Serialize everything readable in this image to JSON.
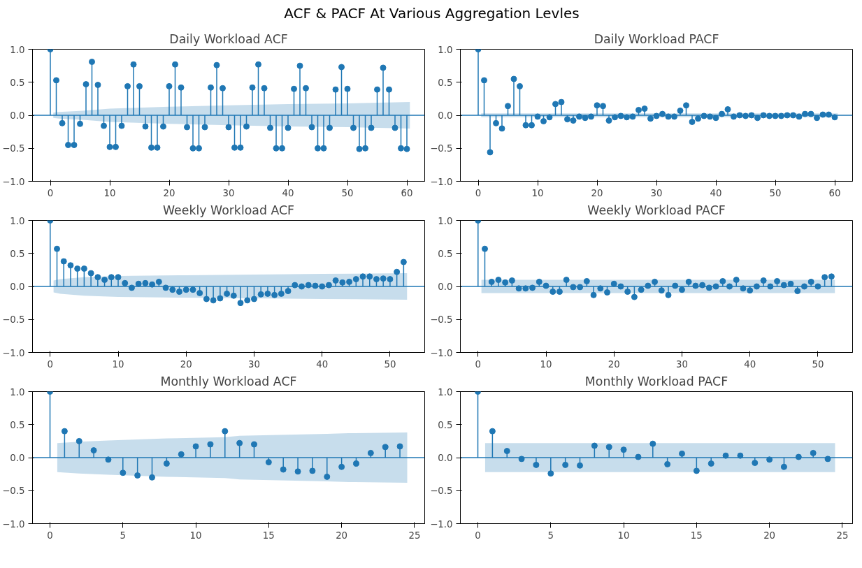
{
  "chart_data": [
    {
      "type": "other",
      "title": "ACF & PACF At Various Aggregation Levles"
    },
    {
      "type": "lollipop",
      "title": "Daily Workload ACF",
      "marker": "circle",
      "xlim": [
        -3,
        63
      ],
      "xticks": [
        0,
        10,
        20,
        30,
        40,
        50,
        60
      ],
      "ylim": [
        -1,
        1
      ],
      "yticks": [
        {
          "value": -1,
          "label": "−1.0"
        },
        {
          "value": -0.5,
          "label": "−0.5"
        },
        {
          "value": 0,
          "label": "0.0"
        },
        {
          "value": 0.5,
          "label": "0.5"
        },
        {
          "value": 1,
          "label": "1.0"
        }
      ],
      "series": [
        {
          "color": "#1f77b4",
          "x": [
            0,
            1,
            2,
            3,
            4,
            5,
            6,
            7,
            8,
            9,
            10,
            11,
            12,
            13,
            14,
            15,
            16,
            17,
            18,
            19,
            20,
            21,
            22,
            23,
            24,
            25,
            26,
            27,
            28,
            29,
            30,
            31,
            32,
            33,
            34,
            35,
            36,
            37,
            38,
            39,
            40,
            41,
            42,
            43,
            44,
            45,
            46,
            47,
            48,
            49,
            50,
            51,
            52,
            53,
            54,
            55,
            56,
            57,
            58,
            59,
            60
          ],
          "values": [
            1,
            0.53,
            -0.12,
            -0.45,
            -0.45,
            -0.13,
            0.47,
            0.81,
            0.46,
            -0.16,
            -0.48,
            -0.48,
            -0.16,
            0.44,
            0.77,
            0.44,
            -0.17,
            -0.49,
            -0.49,
            -0.17,
            0.44,
            0.77,
            0.42,
            -0.18,
            -0.5,
            -0.5,
            -0.18,
            0.42,
            0.76,
            0.41,
            -0.18,
            -0.49,
            -0.49,
            -0.17,
            0.42,
            0.77,
            0.41,
            -0.19,
            -0.5,
            -0.5,
            -0.19,
            0.4,
            0.75,
            0.41,
            -0.18,
            -0.5,
            -0.5,
            -0.19,
            0.39,
            0.73,
            0.4,
            -0.19,
            -0.51,
            -0.5,
            -0.19,
            0.39,
            0.72,
            0.39,
            -0.19,
            -0.5,
            -0.51
          ]
        },
        {
          "type": "line",
          "marker": "none",
          "color": "#1f77b4",
          "x": [
            -3,
            0.5,
            1.5,
            5.5,
            10,
            20,
            30,
            40,
            50,
            60.5,
            63
          ],
          "values": [
            0,
            0,
            0,
            0,
            0,
            0,
            0,
            0,
            0,
            0,
            0
          ],
          "upper": [
            null,
            0.04,
            0.05,
            0.07,
            0.1,
            0.13,
            0.15,
            0.17,
            0.18,
            0.2,
            null
          ],
          "lower": [
            null,
            -0.04,
            -0.05,
            -0.07,
            -0.1,
            -0.13,
            -0.15,
            -0.17,
            -0.18,
            -0.2,
            null
          ]
        }
      ]
    },
    {
      "type": "lollipop",
      "title": "Daily Workload PACF",
      "marker": "circle",
      "xlim": [
        -3,
        63
      ],
      "xticks": [
        0,
        10,
        20,
        30,
        40,
        50,
        60
      ],
      "ylim": [
        -1,
        1
      ],
      "yticks": [
        {
          "value": -1,
          "label": "−1.0"
        },
        {
          "value": -0.5,
          "label": "−0.5"
        },
        {
          "value": 0,
          "label": "0.0"
        },
        {
          "value": 0.5,
          "label": "0.5"
        },
        {
          "value": 1,
          "label": "1.0"
        }
      ],
      "series": [
        {
          "color": "#1f77b4",
          "x": [
            0,
            1,
            2,
            3,
            4,
            5,
            6,
            7,
            8,
            9,
            10,
            11,
            12,
            13,
            14,
            15,
            16,
            17,
            18,
            19,
            20,
            21,
            22,
            23,
            24,
            25,
            26,
            27,
            28,
            29,
            30,
            31,
            32,
            33,
            34,
            35,
            36,
            37,
            38,
            39,
            40,
            41,
            42,
            43,
            44,
            45,
            46,
            47,
            48,
            49,
            50,
            51,
            52,
            53,
            54,
            55,
            56,
            57,
            58,
            59,
            60
          ],
          "values": [
            1,
            0.53,
            -0.56,
            -0.12,
            -0.2,
            0.14,
            0.55,
            0.44,
            -0.15,
            -0.15,
            -0.02,
            -0.09,
            -0.03,
            0.17,
            0.2,
            -0.06,
            -0.08,
            -0.02,
            -0.04,
            -0.02,
            0.15,
            0.14,
            -0.08,
            -0.03,
            -0.01,
            -0.03,
            -0.02,
            0.08,
            0.1,
            -0.05,
            -0.01,
            0.02,
            -0.02,
            -0.02,
            0.07,
            0.15,
            -0.1,
            -0.05,
            -0.01,
            -0.02,
            -0.04,
            0.02,
            0.09,
            -0.02,
            0,
            -0.01,
            0,
            -0.04,
            0,
            -0.01,
            -0.01,
            -0.01,
            0,
            0,
            -0.02,
            0.02,
            0.02,
            -0.04,
            0.01,
            0.01,
            -0.03
          ]
        },
        {
          "type": "line",
          "marker": "none",
          "color": "#1f77b4",
          "x": [
            -3,
            0.5,
            60.5,
            63
          ],
          "values": [
            0,
            0,
            0,
            0
          ],
          "upper": [
            null,
            0.03,
            0.03,
            null
          ],
          "lower": [
            null,
            -0.03,
            -0.03,
            null
          ]
        }
      ]
    },
    {
      "type": "lollipop",
      "title": "Weekly Workload ACF",
      "marker": "circle",
      "xlim": [
        -2.6,
        55.1
      ],
      "xticks": [
        0,
        10,
        20,
        30,
        40,
        50
      ],
      "ylim": [
        -1,
        1
      ],
      "yticks": [
        {
          "value": -1,
          "label": "−1.0"
        },
        {
          "value": -0.5,
          "label": "−0.5"
        },
        {
          "value": 0,
          "label": "0.0"
        },
        {
          "value": 0.5,
          "label": "0.5"
        },
        {
          "value": 1,
          "label": "1.0"
        }
      ],
      "series": [
        {
          "color": "#1f77b4",
          "x": [
            0,
            1,
            2,
            3,
            4,
            5,
            6,
            7,
            8,
            9,
            10,
            11,
            12,
            13,
            14,
            15,
            16,
            17,
            18,
            19,
            20,
            21,
            22,
            23,
            24,
            25,
            26,
            27,
            28,
            29,
            30,
            31,
            32,
            33,
            34,
            35,
            36,
            37,
            38,
            39,
            40,
            41,
            42,
            43,
            44,
            45,
            46,
            47,
            48,
            49,
            50,
            51,
            52
          ],
          "values": [
            1,
            0.57,
            0.38,
            0.32,
            0.27,
            0.27,
            0.2,
            0.14,
            0.1,
            0.14,
            0.14,
            0.05,
            -0.02,
            0.04,
            0.05,
            0.03,
            0.07,
            -0.02,
            -0.05,
            -0.08,
            -0.05,
            -0.05,
            -0.1,
            -0.19,
            -0.21,
            -0.18,
            -0.11,
            -0.14,
            -0.25,
            -0.21,
            -0.19,
            -0.12,
            -0.11,
            -0.13,
            -0.11,
            -0.07,
            0.02,
            0,
            0.02,
            0.01,
            0,
            0.02,
            0.09,
            0.06,
            0.07,
            0.11,
            0.15,
            0.15,
            0.11,
            0.12,
            0.11,
            0.22,
            0.37
          ]
        },
        {
          "type": "line",
          "marker": "none",
          "color": "#1f77b4",
          "x": [
            -2.6,
            0.5,
            1.5,
            5,
            10,
            20,
            30,
            40,
            52.5,
            55.1
          ],
          "values": [
            0,
            0,
            0,
            0,
            0,
            0,
            0,
            0,
            0,
            0
          ],
          "upper": [
            null,
            0.09,
            0.11,
            0.14,
            0.16,
            0.17,
            0.18,
            0.19,
            0.2,
            null
          ],
          "lower": [
            null,
            -0.09,
            -0.11,
            -0.14,
            -0.16,
            -0.17,
            -0.18,
            -0.19,
            -0.2,
            null
          ]
        }
      ]
    },
    {
      "type": "lollipop",
      "title": "Weekly Workload PACF",
      "marker": "circle",
      "xlim": [
        -2.6,
        55.1
      ],
      "xticks": [
        0,
        10,
        20,
        30,
        40,
        50
      ],
      "ylim": [
        -1,
        1
      ],
      "yticks": [
        {
          "value": -1,
          "label": "−1.0"
        },
        {
          "value": -0.5,
          "label": "−0.5"
        },
        {
          "value": 0,
          "label": "0.0"
        },
        {
          "value": 0.5,
          "label": "0.5"
        },
        {
          "value": 1,
          "label": "1.0"
        }
      ],
      "series": [
        {
          "color": "#1f77b4",
          "x": [
            0,
            1,
            2,
            3,
            4,
            5,
            6,
            7,
            8,
            9,
            10,
            11,
            12,
            13,
            14,
            15,
            16,
            17,
            18,
            19,
            20,
            21,
            22,
            23,
            24,
            25,
            26,
            27,
            28,
            29,
            30,
            31,
            32,
            33,
            34,
            35,
            36,
            37,
            38,
            39,
            40,
            41,
            42,
            43,
            44,
            45,
            46,
            47,
            48,
            49,
            50,
            51,
            52
          ],
          "values": [
            1,
            0.57,
            0.07,
            0.1,
            0.06,
            0.09,
            -0.03,
            -0.03,
            -0.02,
            0.07,
            0.01,
            -0.08,
            -0.08,
            0.1,
            -0.01,
            -0.01,
            0.08,
            -0.13,
            -0.03,
            -0.09,
            0.04,
            0,
            -0.08,
            -0.16,
            -0.05,
            0.01,
            0.07,
            -0.06,
            -0.13,
            0.01,
            -0.05,
            0.07,
            0.01,
            0.02,
            -0.02,
            0,
            0.08,
            0,
            0.1,
            -0.03,
            -0.06,
            0,
            0.09,
            0,
            0.08,
            0.02,
            0.04,
            -0.07,
            0,
            0.07,
            0,
            0.14,
            0.15
          ]
        },
        {
          "type": "line",
          "marker": "none",
          "color": "#1f77b4",
          "x": [
            -2.6,
            0.5,
            52.5,
            55.1
          ],
          "values": [
            0,
            0,
            0,
            0
          ],
          "upper": [
            null,
            0.1,
            0.1,
            null
          ],
          "lower": [
            null,
            -0.1,
            -0.1,
            null
          ]
        }
      ]
    },
    {
      "type": "lollipop",
      "title": "Monthly Workload ACF",
      "marker": "circle",
      "xlim": [
        -1.2,
        25.7
      ],
      "xticks": [
        0,
        5,
        10,
        15,
        20,
        25
      ],
      "ylim": [
        -1,
        1
      ],
      "yticks": [
        {
          "value": -1,
          "label": "−1.0"
        },
        {
          "value": -0.5,
          "label": "−0.5"
        },
        {
          "value": 0,
          "label": "0.0"
        },
        {
          "value": 0.5,
          "label": "0.5"
        },
        {
          "value": 1,
          "label": "1.0"
        }
      ],
      "series": [
        {
          "color": "#1f77b4",
          "x": [
            0,
            1,
            2,
            3,
            4,
            5,
            6,
            7,
            8,
            9,
            10,
            11,
            12,
            13,
            14,
            15,
            16,
            17,
            18,
            19,
            20,
            21,
            22,
            23,
            24
          ],
          "values": [
            1,
            0.4,
            0.25,
            0.11,
            -0.03,
            -0.23,
            -0.27,
            -0.3,
            -0.09,
            0.05,
            0.17,
            0.2,
            0.4,
            0.22,
            0.2,
            -0.07,
            -0.18,
            -0.21,
            -0.2,
            -0.29,
            -0.14,
            -0.09,
            0.07,
            0.16,
            0.17
          ]
        },
        {
          "type": "line",
          "marker": "none",
          "color": "#1f77b4",
          "x": [
            -1.2,
            0.5,
            2,
            4,
            8,
            12,
            13,
            19,
            20.5,
            24.5,
            25.7
          ],
          "values": [
            0,
            0,
            0,
            0,
            0,
            0,
            0,
            0,
            0,
            0,
            0
          ],
          "upper": [
            null,
            0.22,
            0.24,
            0.26,
            0.29,
            0.31,
            0.33,
            0.36,
            0.37,
            0.38,
            null
          ],
          "lower": [
            null,
            -0.22,
            -0.24,
            -0.26,
            -0.29,
            -0.31,
            -0.33,
            -0.36,
            -0.37,
            -0.38,
            null
          ]
        }
      ]
    },
    {
      "type": "lollipop",
      "title": "Monthly Workload PACF",
      "marker": "circle",
      "xlim": [
        -1.2,
        25.7
      ],
      "xticks": [
        0,
        5,
        10,
        15,
        20,
        25
      ],
      "ylim": [
        -1,
        1
      ],
      "yticks": [
        {
          "value": -1,
          "label": "−1.0"
        },
        {
          "value": -0.5,
          "label": "−0.5"
        },
        {
          "value": 0,
          "label": "0.0"
        },
        {
          "value": 0.5,
          "label": "0.5"
        },
        {
          "value": 1,
          "label": "1.0"
        }
      ],
      "series": [
        {
          "color": "#1f77b4",
          "x": [
            0,
            1,
            2,
            3,
            4,
            5,
            6,
            7,
            8,
            9,
            10,
            11,
            12,
            13,
            14,
            15,
            16,
            17,
            18,
            19,
            20,
            21,
            22,
            23,
            24
          ],
          "values": [
            1,
            0.4,
            0.1,
            -0.02,
            -0.11,
            -0.24,
            -0.11,
            -0.12,
            0.18,
            0.16,
            0.12,
            0.01,
            0.21,
            -0.1,
            0.06,
            -0.2,
            -0.09,
            0.03,
            0.03,
            -0.08,
            -0.03,
            -0.14,
            0.01,
            0.07,
            -0.02
          ]
        },
        {
          "type": "line",
          "marker": "none",
          "color": "#1f77b4",
          "x": [
            -1.2,
            0.5,
            24.5,
            25.7
          ],
          "values": [
            0,
            0,
            0,
            0
          ],
          "upper": [
            null,
            0.22,
            0.22,
            null
          ],
          "lower": [
            null,
            -0.22,
            -0.22,
            null
          ]
        }
      ]
    }
  ]
}
